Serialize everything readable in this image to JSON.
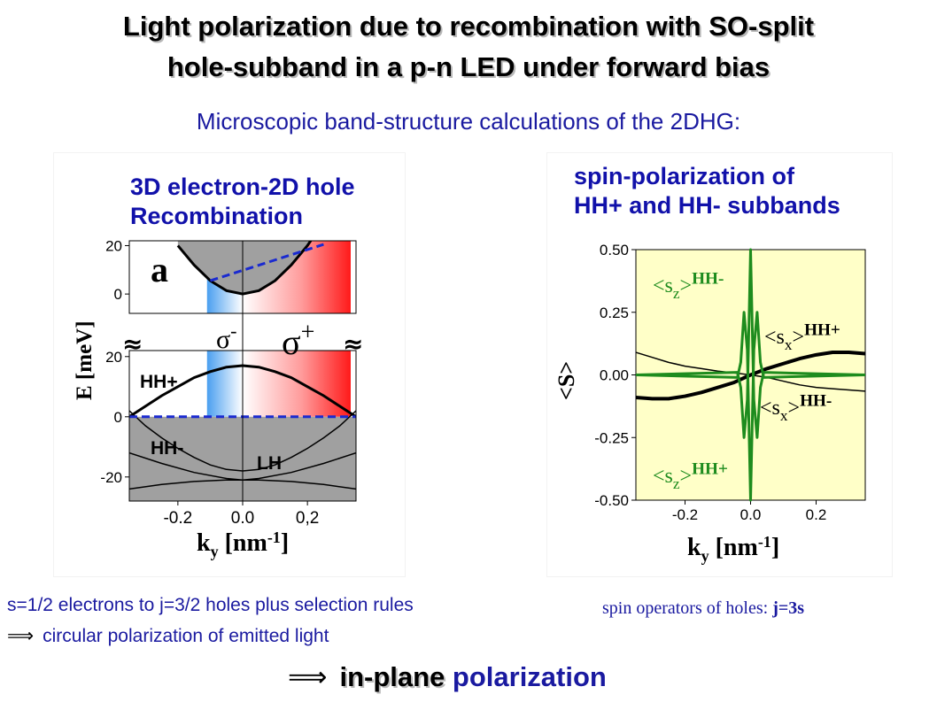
{
  "title_line1": "Light polarization due to recombination with SO-split",
  "title_line2": "hole-subband in a p-n LED under forward bias",
  "subtitle": "Microscopic band-structure calculations of the 2DHG:",
  "left_panel": {
    "title_line1": "3D electron-2D hole",
    "title_line2": "Recombination"
  },
  "right_panel": {
    "title_line1": "spin-polarization of",
    "title_line2": "HH+ and HH- subbands"
  },
  "footer": {
    "rule1": "s=1/2 electrons to j=3/2 holes plus selection rules",
    "arrow": "⟹",
    "rule2": "circular polarization of emitted light",
    "spin_operators": "spin operators of holes: ",
    "spin_relation": "j=3s",
    "conclusion_highlight": "in-plane",
    "conclusion_rest": " polarization"
  },
  "colors": {
    "title_blue": "#1111aa",
    "plot_bg": "#ffffc8",
    "sz_green": "#1e8c1e",
    "gray_fill": "#a0a0a0",
    "dash_blue": "#1a2ad0",
    "sigma_minus": "#4a9ff0",
    "sigma_plus": "#ff1a1a"
  },
  "chart_data": [
    {
      "type": "line",
      "panel": "left",
      "xlabel_main": "k",
      "xlabel_sub": "y",
      "xlabel_unit": "[nm",
      "xlabel_exp": "-1",
      "xlabel_close": "]",
      "ylabel": "E [meV]",
      "xlim": [
        -0.35,
        0.35
      ],
      "x_ticks": [
        "-0.2",
        "0.0",
        "0,2"
      ],
      "x_tick_values": [
        -0.2,
        0.0,
        0.2
      ],
      "upper_axis": {
        "ylim": [
          -8,
          22
        ],
        "ticks": [
          "20",
          "0"
        ],
        "tick_values": [
          20,
          0
        ]
      },
      "lower_axis": {
        "ylim": [
          -28,
          22
        ],
        "ticks": [
          "20",
          "0",
          "-20"
        ],
        "tick_values": [
          20,
          0,
          -20
        ]
      },
      "panel_label": "a",
      "break_symbol": "≈",
      "sigma_minus": {
        "base": "σ",
        "sup": "-"
      },
      "sigma_plus": {
        "base": "σ",
        "sup": "+"
      },
      "band_labels": [
        "HH+",
        "HH-",
        "LH"
      ],
      "conduction_band": {
        "x": [
          -0.2,
          -0.15,
          -0.1,
          -0.05,
          0.0,
          0.05,
          0.1,
          0.15,
          0.2,
          0.25
        ],
        "y": [
          20.0,
          12.0,
          5.5,
          1.4,
          0.0,
          1.4,
          5.5,
          12.0,
          20.0,
          30.0
        ]
      },
      "hh_plus": {
        "x": [
          -0.35,
          -0.3,
          -0.25,
          -0.2,
          -0.15,
          -0.1,
          -0.05,
          0.0,
          0.05,
          0.1,
          0.15,
          0.2,
          0.25,
          0.3,
          0.35
        ],
        "y": [
          0.0,
          3.5,
          7.0,
          10.0,
          13.0,
          15.0,
          16.5,
          17.0,
          16.5,
          15.0,
          13.0,
          10.0,
          7.0,
          3.5,
          0.0
        ]
      },
      "fermi_level": 0,
      "hh_minus": {
        "x": [
          -0.35,
          -0.25,
          -0.15,
          -0.05,
          0.0,
          0.05,
          0.15,
          0.25,
          0.35
        ],
        "y": [
          -12.0,
          -15.5,
          -18.5,
          -20.5,
          -21.0,
          -20.5,
          -18.5,
          -15.5,
          -12.0
        ]
      },
      "lh": {
        "x": [
          -0.35,
          -0.25,
          -0.15,
          -0.05,
          0.0,
          0.05,
          0.15,
          0.25,
          0.35
        ],
        "y": [
          -24.0,
          -22.5,
          -21.5,
          -21.0,
          -21.0,
          -21.0,
          -21.5,
          -22.5,
          -24.0
        ]
      },
      "grey_branch": {
        "x": [
          -0.35,
          -0.3,
          -0.25,
          -0.2,
          -0.15,
          -0.1,
          -0.05,
          0.0
        ],
        "y": [
          2.0,
          -3.0,
          -7.0,
          -10.5,
          -13.5,
          -16.0,
          -17.5,
          -18.0
        ]
      }
    },
    {
      "type": "line",
      "panel": "right",
      "xlabel_main": "k",
      "xlabel_sub": "y",
      "xlabel_unit": "[nm",
      "xlabel_exp": "-1",
      "xlabel_close": "]",
      "ylabel": "<S>",
      "xlim": [
        -0.35,
        0.35
      ],
      "ylim": [
        -0.5,
        0.5
      ],
      "x_ticks": [
        "-0.2",
        "0.0",
        "0.2"
      ],
      "x_tick_values": [
        -0.2,
        0.0,
        0.2
      ],
      "y_ticks": [
        "0.50",
        "0.25",
        "0.00",
        "-0.25",
        "-0.50"
      ],
      "y_tick_values": [
        0.5,
        0.25,
        0.0,
        -0.25,
        -0.5
      ],
      "grid": false,
      "series_labels": {
        "sz_hh_minus": {
          "op": "<s",
          "sub": "z",
          "close": ">",
          "sup": "HH-"
        },
        "sx_hh_plus": {
          "op": "<s",
          "sub": "x",
          "close": ">",
          "sup": "HH+"
        },
        "sx_hh_minus": {
          "op": "<s",
          "sub": "x",
          "close": ">",
          "sup": "HH-"
        },
        "sz_hh_plus": {
          "op": "<s",
          "sub": "z",
          "close": ">",
          "sup": "HH+"
        }
      },
      "series": [
        {
          "key": "sx_hh_plus",
          "x": [
            -0.35,
            -0.3,
            -0.25,
            -0.2,
            -0.15,
            -0.1,
            -0.05,
            0.0,
            0.05,
            0.1,
            0.15,
            0.2,
            0.25,
            0.3,
            0.35
          ],
          "y": [
            0.09,
            0.07,
            0.05,
            0.035,
            0.025,
            0.015,
            0.008,
            0.0,
            -0.01,
            -0.025,
            -0.04,
            -0.05,
            -0.055,
            -0.06,
            -0.065
          ]
        },
        {
          "key": "sx_hh_minus",
          "x": [
            -0.35,
            -0.3,
            -0.25,
            -0.2,
            -0.15,
            -0.1,
            -0.05,
            0.0,
            0.05,
            0.1,
            0.15,
            0.2,
            0.25,
            0.3,
            0.35
          ],
          "y": [
            -0.09,
            -0.095,
            -0.095,
            -0.085,
            -0.07,
            -0.05,
            -0.03,
            0.0,
            0.025,
            0.045,
            0.065,
            0.08,
            0.09,
            0.09,
            0.085
          ]
        },
        {
          "key": "sz_hh_minus",
          "x": [
            -0.35,
            -0.04,
            -0.03,
            -0.02,
            -0.01,
            0.0,
            0.01,
            0.02,
            0.03,
            0.04,
            0.35
          ],
          "y": [
            0.0,
            0.01,
            -0.05,
            -0.25,
            -0.1,
            0.5,
            -0.1,
            -0.25,
            -0.05,
            0.01,
            0.0
          ]
        },
        {
          "key": "sz_hh_plus",
          "x": [
            -0.35,
            -0.04,
            -0.03,
            -0.02,
            -0.01,
            0.0,
            0.01,
            0.02,
            0.03,
            0.04,
            0.35
          ],
          "y": [
            0.0,
            -0.01,
            0.05,
            0.25,
            0.1,
            -0.5,
            0.1,
            0.25,
            0.05,
            -0.01,
            0.0
          ]
        }
      ]
    }
  ]
}
